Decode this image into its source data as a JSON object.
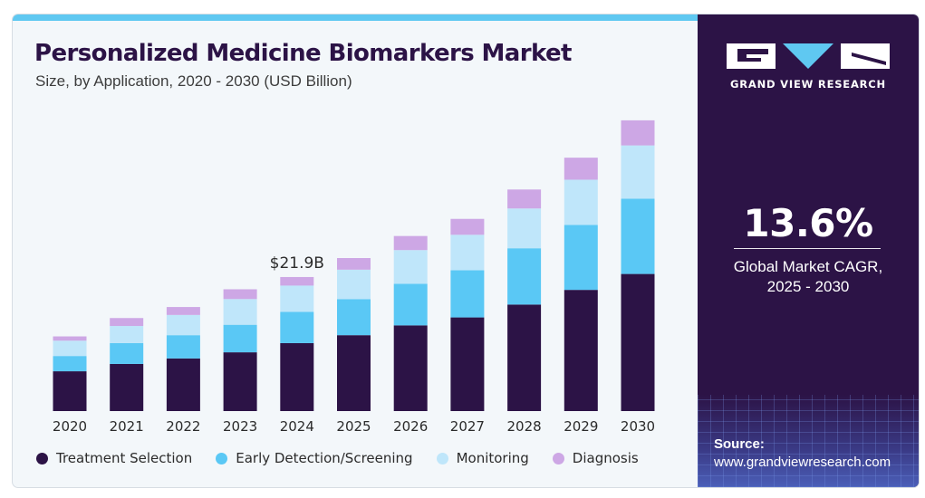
{
  "header": {
    "title": "Personalized Medicine Biomarkers Market",
    "subtitle": "Size, by Application, 2020 - 2030 (USD Billion)"
  },
  "chart_data": {
    "type": "bar",
    "stacked": true,
    "categories": [
      "2020",
      "2021",
      "2022",
      "2023",
      "2024",
      "2025",
      "2026",
      "2027",
      "2028",
      "2029",
      "2030"
    ],
    "series": [
      {
        "name": "Treatment Selection",
        "color": "#2c1346",
        "values": [
          6.5,
          7.7,
          8.6,
          9.6,
          11.1,
          12.4,
          14.0,
          15.3,
          17.4,
          19.8,
          22.4
        ]
      },
      {
        "name": "Early Detection/Screening",
        "color": "#5ac8f5",
        "values": [
          2.5,
          3.4,
          3.8,
          4.5,
          5.1,
          5.9,
          6.8,
          7.7,
          9.2,
          10.6,
          12.3
        ]
      },
      {
        "name": "Monitoring",
        "color": "#bfe6fa",
        "values": [
          2.5,
          2.8,
          3.3,
          4.2,
          4.3,
          4.8,
          5.5,
          5.8,
          6.5,
          7.4,
          8.7
        ]
      },
      {
        "name": "Diagnosis",
        "color": "#cda7e5",
        "values": [
          0.7,
          1.3,
          1.3,
          1.6,
          1.4,
          1.9,
          2.3,
          2.6,
          3.1,
          3.6,
          4.1
        ]
      }
    ],
    "annotations": [
      {
        "category": "2024",
        "text": "$21.9B"
      }
    ],
    "ylim": [
      0,
      50
    ],
    "grid": false,
    "legend_position": "bottom"
  },
  "sidebar": {
    "brand": "GRAND VIEW RESEARCH",
    "cagr_value": "13.6%",
    "cagr_label_line1": "Global Market CAGR,",
    "cagr_label_line2": "2025 - 2030",
    "source_label": "Source:",
    "source_url": "www.grandviewresearch.com"
  }
}
